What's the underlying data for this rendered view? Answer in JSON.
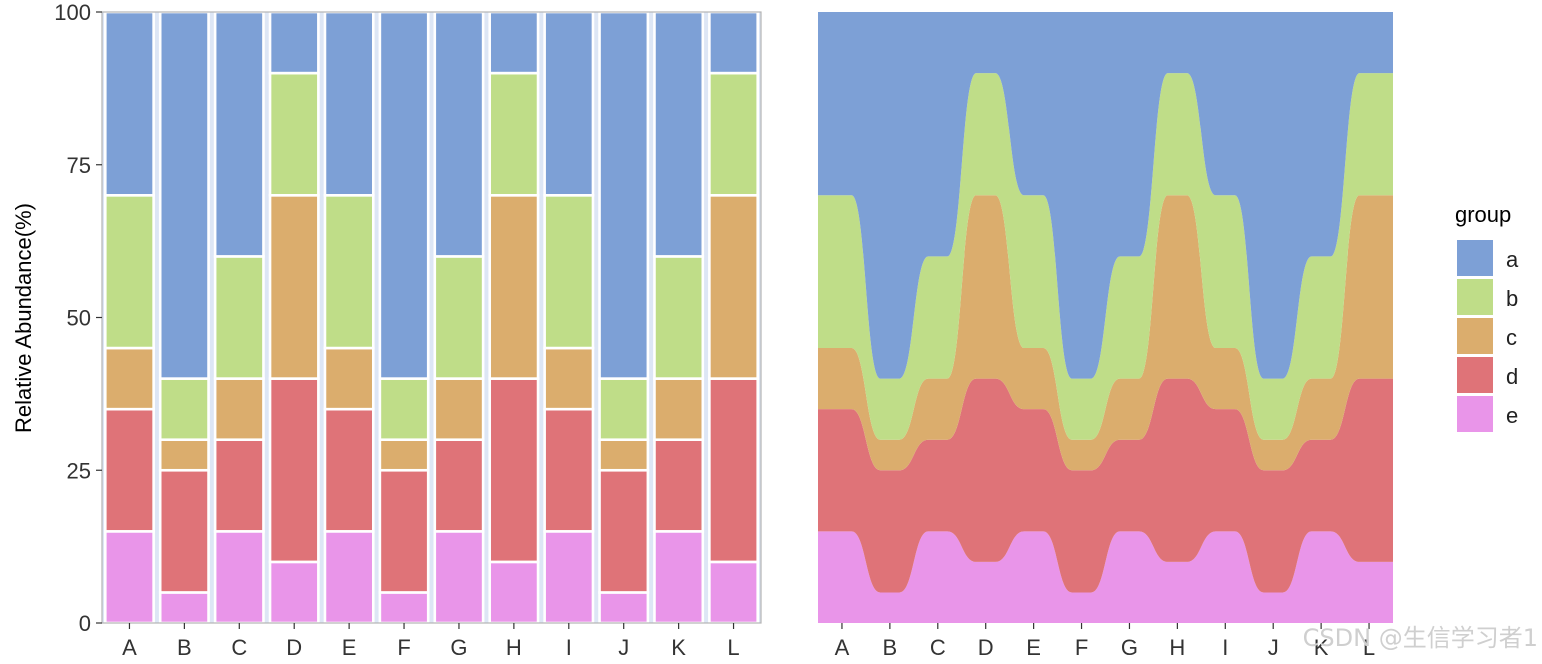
{
  "chart_data": [
    {
      "type": "bar",
      "stacked": true,
      "categories": [
        "A",
        "B",
        "C",
        "D",
        "E",
        "F",
        "G",
        "H",
        "I",
        "J",
        "K",
        "L"
      ],
      "ylabel": "Relative Abundance(%)",
      "ylim": [
        0,
        100
      ],
      "yticks": [
        "0",
        "25",
        "50",
        "75",
        "100"
      ],
      "series": [
        {
          "name": "e",
          "values": [
            15,
            5,
            15,
            10,
            15,
            5,
            15,
            10,
            15,
            5,
            15,
            10
          ]
        },
        {
          "name": "d",
          "values": [
            20,
            20,
            15,
            30,
            20,
            20,
            15,
            30,
            20,
            20,
            15,
            30
          ]
        },
        {
          "name": "c",
          "values": [
            10,
            5,
            10,
            30,
            10,
            5,
            10,
            30,
            10,
            5,
            10,
            30
          ]
        },
        {
          "name": "b",
          "values": [
            25,
            10,
            20,
            20,
            25,
            10,
            20,
            20,
            25,
            10,
            20,
            20
          ]
        },
        {
          "name": "a",
          "values": [
            30,
            60,
            40,
            10,
            30,
            60,
            40,
            10,
            30,
            60,
            40,
            10
          ]
        }
      ]
    },
    {
      "type": "area",
      "stacked": true,
      "smoothed": true,
      "categories": [
        "A",
        "B",
        "C",
        "D",
        "E",
        "F",
        "G",
        "H",
        "I",
        "J",
        "K",
        "L"
      ],
      "ylim": [
        0,
        100
      ],
      "series": [
        {
          "name": "e",
          "values": [
            15,
            5,
            15,
            10,
            15,
            5,
            15,
            10,
            15,
            5,
            15,
            10
          ]
        },
        {
          "name": "d",
          "values": [
            20,
            20,
            15,
            30,
            20,
            20,
            15,
            30,
            20,
            20,
            15,
            30
          ]
        },
        {
          "name": "c",
          "values": [
            10,
            5,
            10,
            30,
            10,
            5,
            10,
            30,
            10,
            5,
            10,
            30
          ]
        },
        {
          "name": "b",
          "values": [
            25,
            10,
            20,
            20,
            25,
            10,
            20,
            20,
            25,
            10,
            20,
            20
          ]
        },
        {
          "name": "a",
          "values": [
            30,
            60,
            40,
            10,
            30,
            60,
            40,
            10,
            30,
            60,
            40,
            10
          ]
        }
      ]
    }
  ],
  "legend": {
    "title": "group",
    "position": "right",
    "items": [
      {
        "label": "a",
        "color": "#7DA0D6"
      },
      {
        "label": "b",
        "color": "#BFDD88"
      },
      {
        "label": "c",
        "color": "#DBAD6D"
      },
      {
        "label": "d",
        "color": "#DF7378"
      },
      {
        "label": "e",
        "color": "#E995E9"
      }
    ]
  },
  "watermark": "CSDN @生信学习者1"
}
